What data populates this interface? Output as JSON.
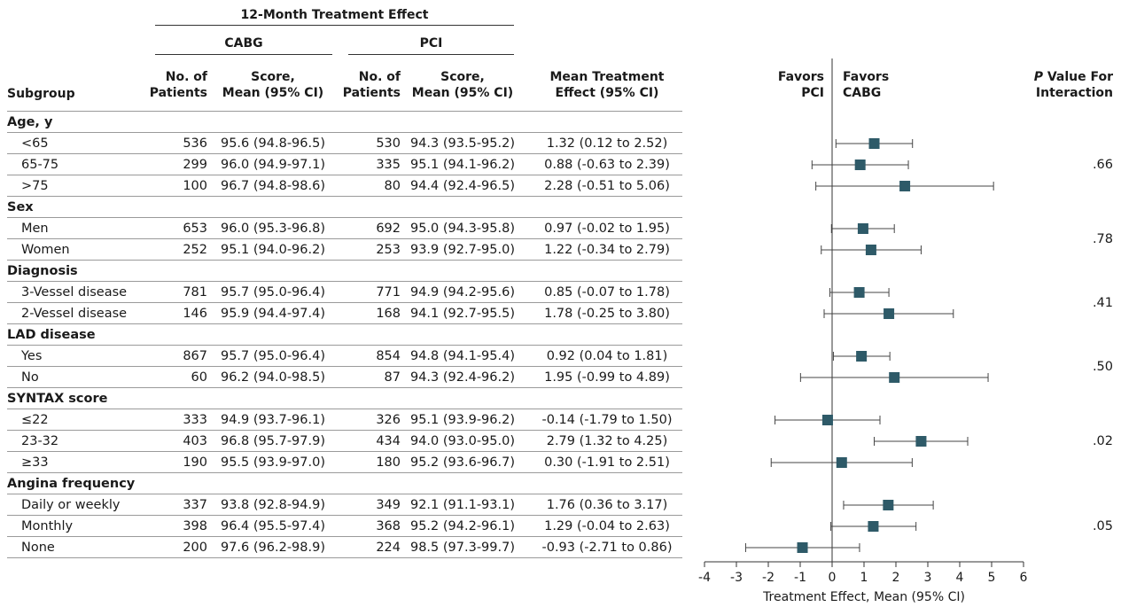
{
  "header": {
    "span_title": "12-Month Treatment Effect",
    "cabg": "CABG",
    "pci": "PCI",
    "subgroup": "Subgroup",
    "no_patients_1": "No. of",
    "no_patients_2": "Patients",
    "score_1": "Score,",
    "score_2": "Mean (95% CI)",
    "mte_1": "Mean Treatment",
    "mte_2": "Effect (95% CI)",
    "favors_pci_1": "Favors",
    "favors_pci_2": "PCI",
    "favors_cabg_1": "Favors",
    "favors_cabg_2": "CABG",
    "pval_italic": "P",
    "pval_rest": " Value For",
    "pval_2": "Interaction"
  },
  "table": {
    "rows": [
      {
        "kind": "group",
        "label": "Age, y"
      },
      {
        "kind": "item",
        "label": "<65",
        "cabg_n": "536",
        "cabg_score": "95.6 (94.8-96.5)",
        "pci_n": "530",
        "pci_score": "94.3 (93.5-95.2)",
        "effect": "1.32 (0.12 to 2.52)"
      },
      {
        "kind": "item",
        "label": "65-75",
        "cabg_n": "299",
        "cabg_score": "96.0 (94.9-97.1)",
        "pci_n": "335",
        "pci_score": "95.1 (94.1-96.2)",
        "effect": "0.88 (-0.63 to 2.39)"
      },
      {
        "kind": "item",
        "label": ">75",
        "cabg_n": "100",
        "cabg_score": "96.7 (94.8-98.6)",
        "pci_n": "80",
        "pci_score": "94.4 (92.4-96.5)",
        "effect": "2.28 (-0.51 to 5.06)"
      },
      {
        "kind": "group",
        "label": "Sex"
      },
      {
        "kind": "item",
        "label": "Men",
        "cabg_n": "653",
        "cabg_score": "96.0 (95.3-96.8)",
        "pci_n": "692",
        "pci_score": "95.0 (94.3-95.8)",
        "effect": "0.97 (-0.02 to 1.95)"
      },
      {
        "kind": "item",
        "label": "Women",
        "cabg_n": "252",
        "cabg_score": "95.1 (94.0-96.2)",
        "pci_n": "253",
        "pci_score": "93.9 (92.7-95.0)",
        "effect": "1.22 (-0.34 to 2.79)"
      },
      {
        "kind": "group",
        "label": "Diagnosis"
      },
      {
        "kind": "item",
        "label": "3-Vessel disease",
        "cabg_n": "781",
        "cabg_score": "95.7 (95.0-96.4)",
        "pci_n": "771",
        "pci_score": "94.9 (94.2-95.6)",
        "effect": "0.85 (-0.07 to 1.78)"
      },
      {
        "kind": "item",
        "label": "2-Vessel disease",
        "cabg_n": "146",
        "cabg_score": "95.9 (94.4-97.4)",
        "pci_n": "168",
        "pci_score": "94.1 (92.7-95.5)",
        "effect": "1.78 (-0.25 to 3.80)"
      },
      {
        "kind": "group",
        "label": "LAD disease"
      },
      {
        "kind": "item",
        "label": "Yes",
        "cabg_n": "867",
        "cabg_score": "95.7 (95.0-96.4)",
        "pci_n": "854",
        "pci_score": "94.8 (94.1-95.4)",
        "effect": "0.92 (0.04 to 1.81)"
      },
      {
        "kind": "item",
        "label": "No",
        "cabg_n": "60",
        "cabg_score": "96.2 (94.0-98.5)",
        "pci_n": "87",
        "pci_score": "94.3 (92.4-96.2)",
        "effect": "1.95 (-0.99 to 4.89)"
      },
      {
        "kind": "group",
        "label": "SYNTAX score"
      },
      {
        "kind": "item",
        "label": "≤22",
        "cabg_n": "333",
        "cabg_score": "94.9 (93.7-96.1)",
        "pci_n": "326",
        "pci_score": "95.1 (93.9-96.2)",
        "effect": "-0.14 (-1.79 to 1.50)"
      },
      {
        "kind": "item",
        "label": "23-32",
        "cabg_n": "403",
        "cabg_score": "96.8 (95.7-97.9)",
        "pci_n": "434",
        "pci_score": "94.0 (93.0-95.0)",
        "effect": "2.79 (1.32 to 4.25)"
      },
      {
        "kind": "item",
        "label": "≥33",
        "cabg_n": "190",
        "cabg_score": "95.5 (93.9-97.0)",
        "pci_n": "180",
        "pci_score": "95.2 (93.6-96.7)",
        "effect": "0.30 (-1.91 to 2.51)"
      },
      {
        "kind": "group",
        "label": "Angina frequency"
      },
      {
        "kind": "item",
        "label": "Daily or weekly",
        "cabg_n": "337",
        "cabg_score": "93.8 (92.8-94.9)",
        "pci_n": "349",
        "pci_score": "92.1 (91.1-93.1)",
        "effect": "1.76 (0.36 to 3.17)"
      },
      {
        "kind": "item",
        "label": "Monthly",
        "cabg_n": "398",
        "cabg_score": "96.4 (95.5-97.4)",
        "pci_n": "368",
        "pci_score": "95.2 (94.2-96.1)",
        "effect": "1.29 (-0.04 to 2.63)"
      },
      {
        "kind": "item",
        "label": "None",
        "cabg_n": "200",
        "cabg_score": "97.6 (96.2-98.9)",
        "pci_n": "224",
        "pci_score": "98.5 (97.3-99.7)",
        "effect": "-0.93 (-2.71 to 0.86)"
      }
    ],
    "interaction_p": [
      {
        "first_row": 1,
        "last_row": 3,
        "value": ".66"
      },
      {
        "first_row": 5,
        "last_row": 6,
        "value": ".78"
      },
      {
        "first_row": 8,
        "last_row": 9,
        "value": ".41"
      },
      {
        "first_row": 11,
        "last_row": 12,
        "value": ".50"
      },
      {
        "first_row": 14,
        "last_row": 16,
        "value": ".02"
      },
      {
        "first_row": 18,
        "last_row": 20,
        "value": ".05"
      }
    ]
  },
  "chart_data": {
    "type": "scatter",
    "subtype": "forest-plot",
    "xlabel": "Treatment Effect, Mean (95% CI)",
    "xlim": [
      -4,
      6
    ],
    "xticks": [
      -4,
      -3,
      -2,
      -1,
      0,
      1,
      2,
      3,
      4,
      5,
      6
    ],
    "reference_line": 0,
    "marker_color": "#2e5a68",
    "points": [
      {
        "row": 1,
        "mean": 1.32,
        "low": 0.12,
        "high": 2.52
      },
      {
        "row": 2,
        "mean": 0.88,
        "low": -0.63,
        "high": 2.39
      },
      {
        "row": 3,
        "mean": 2.28,
        "low": -0.51,
        "high": 5.06
      },
      {
        "row": 5,
        "mean": 0.97,
        "low": -0.02,
        "high": 1.95
      },
      {
        "row": 6,
        "mean": 1.22,
        "low": -0.34,
        "high": 2.79
      },
      {
        "row": 8,
        "mean": 0.85,
        "low": -0.07,
        "high": 1.78
      },
      {
        "row": 9,
        "mean": 1.78,
        "low": -0.25,
        "high": 3.8
      },
      {
        "row": 11,
        "mean": 0.92,
        "low": 0.04,
        "high": 1.81
      },
      {
        "row": 12,
        "mean": 1.95,
        "low": -0.99,
        "high": 4.89
      },
      {
        "row": 14,
        "mean": -0.14,
        "low": -1.79,
        "high": 1.5
      },
      {
        "row": 15,
        "mean": 2.79,
        "low": 1.32,
        "high": 4.25
      },
      {
        "row": 16,
        "mean": 0.3,
        "low": -1.91,
        "high": 2.51
      },
      {
        "row": 18,
        "mean": 1.76,
        "low": 0.36,
        "high": 3.17
      },
      {
        "row": 19,
        "mean": 1.29,
        "low": -0.04,
        "high": 2.63
      },
      {
        "row": 20,
        "mean": -0.93,
        "low": -2.71,
        "high": 0.86
      }
    ]
  }
}
